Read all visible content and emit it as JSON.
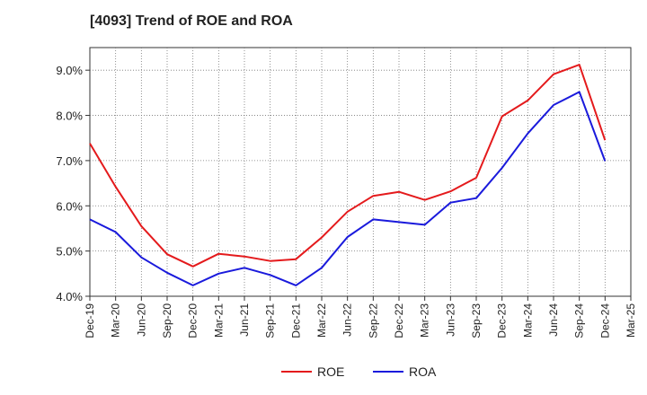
{
  "chart_data": {
    "type": "line",
    "title": "[4093]  Trend of ROE and ROA",
    "xlabel": "",
    "ylabel": "",
    "categories": [
      "Dec-19",
      "Mar-20",
      "Jun-20",
      "Sep-20",
      "Dec-20",
      "Mar-21",
      "Jun-21",
      "Sep-21",
      "Dec-21",
      "Mar-22",
      "Jun-22",
      "Sep-22",
      "Dec-22",
      "Mar-23",
      "Jun-23",
      "Sep-23",
      "Dec-23",
      "Mar-24",
      "Jun-24",
      "Sep-24",
      "Dec-24",
      "Mar-25"
    ],
    "y_ticks": [
      "4.0%",
      "5.0%",
      "6.0%",
      "7.0%",
      "8.0%",
      "9.0%"
    ],
    "ylim": [
      4.0,
      9.5
    ],
    "grid": true,
    "legend_position": "bottom",
    "series": [
      {
        "name": "ROE",
        "color": "#e41a1c",
        "values": [
          7.38,
          6.42,
          5.55,
          4.93,
          4.66,
          4.94,
          4.88,
          4.78,
          4.82,
          5.3,
          5.87,
          6.22,
          6.31,
          6.13,
          6.32,
          6.62,
          7.98,
          8.33,
          8.91,
          9.12,
          7.45,
          null
        ]
      },
      {
        "name": "ROA",
        "color": "#1a1adc",
        "values": [
          5.7,
          5.42,
          4.86,
          4.52,
          4.24,
          4.5,
          4.63,
          4.47,
          4.24,
          4.63,
          5.31,
          5.7,
          5.64,
          5.58,
          6.07,
          6.17,
          6.84,
          7.6,
          8.23,
          8.52,
          6.99,
          null
        ]
      }
    ]
  }
}
